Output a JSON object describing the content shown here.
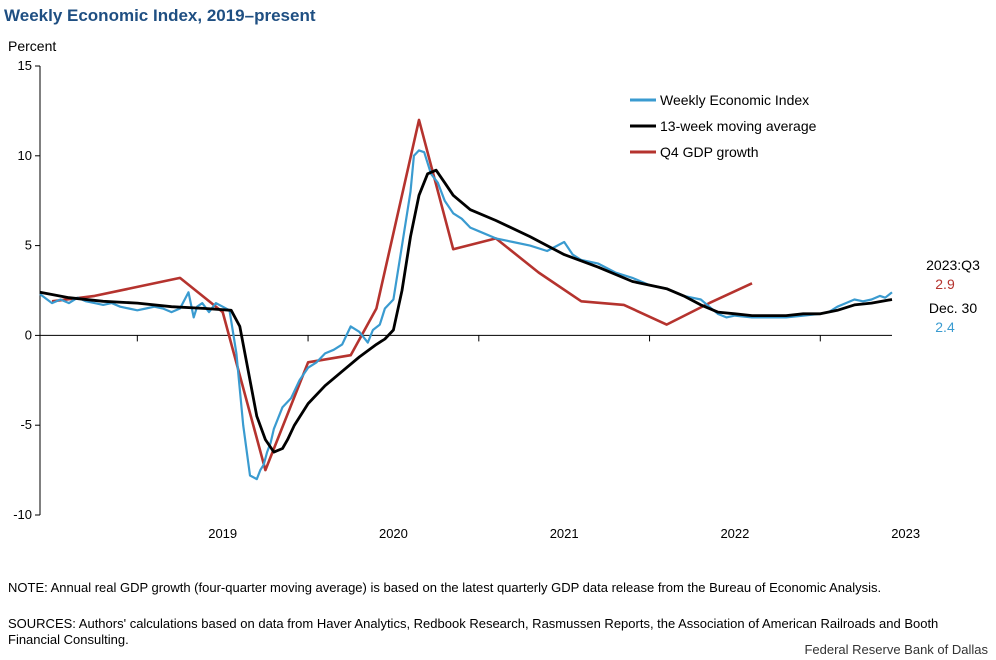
{
  "title": "Weekly Economic Index, 2019–present",
  "note": "NOTE: Annual real GDP growth (four-quarter moving average) is based on the latest quarterly GDP data release from the Bureau of Economic Analysis.",
  "sources": "SOURCES: Authors' calculations based on data from Haver Analytics, Redbook Research, Rasmussen Reports, the Association of American Railroads and Booth Financial Consulting.",
  "credit": "Federal Reserve Bank of Dallas",
  "colors": {
    "wei": "#3a9bd0",
    "ma": "#000000",
    "gdp": "#b5332e",
    "axis": "#000000"
  },
  "chart_data": {
    "type": "line",
    "ylabel": "Percent",
    "ylim": [
      -10,
      15
    ],
    "y_ticks": [
      -10,
      -5,
      0,
      5,
      10,
      15
    ],
    "xlim": [
      2018.43,
      2023.42
    ],
    "x_ticks": [
      "2019",
      "2020",
      "2021",
      "2022",
      "2023"
    ],
    "grid": false,
    "legend": "top-right",
    "series": [
      {
        "name": "Weekly Economic Index",
        "color": "#3a9bd0",
        "x": [
          2018.43,
          2018.5,
          2018.55,
          2018.6,
          2018.65,
          2018.7,
          2018.75,
          2018.8,
          2018.85,
          2018.9,
          2018.95,
          2019.0,
          2019.05,
          2019.1,
          2019.15,
          2019.2,
          2019.25,
          2019.3,
          2019.33,
          2019.35,
          2019.38,
          2019.42,
          2019.46,
          2019.5,
          2019.54,
          2019.58,
          2019.62,
          2019.66,
          2019.7,
          2019.72,
          2019.74,
          2019.76,
          2019.78,
          2019.8,
          2019.85,
          2019.9,
          2019.95,
          2020.0,
          2020.05,
          2020.1,
          2020.15,
          2020.2,
          2020.25,
          2020.3,
          2020.35,
          2020.38,
          2020.42,
          2020.45,
          2020.5,
          2020.55,
          2020.6,
          2020.62,
          2020.65,
          2020.68,
          2020.72,
          2020.76,
          2020.8,
          2020.85,
          2020.9,
          2020.95,
          2021.0,
          2021.1,
          2021.2,
          2021.3,
          2021.4,
          2021.5,
          2021.55,
          2021.6,
          2021.7,
          2021.8,
          2021.9,
          2022.0,
          2022.1,
          2022.2,
          2022.3,
          2022.35,
          2022.4,
          2022.45,
          2022.5,
          2022.6,
          2022.7,
          2022.8,
          2022.9,
          2023.0,
          2023.05,
          2023.1,
          2023.15,
          2023.2,
          2023.25,
          2023.3,
          2023.35,
          2023.38,
          2023.42
        ],
        "values": [
          2.3,
          1.8,
          2.0,
          1.8,
          2.1,
          1.9,
          1.8,
          1.7,
          1.8,
          1.6,
          1.5,
          1.4,
          1.5,
          1.6,
          1.5,
          1.3,
          1.5,
          2.4,
          1.0,
          1.6,
          1.8,
          1.3,
          1.8,
          1.6,
          1.4,
          -1.0,
          -5.0,
          -7.8,
          -8.0,
          -7.5,
          -7.2,
          -6.5,
          -6.0,
          -5.2,
          -4.0,
          -3.5,
          -2.5,
          -1.8,
          -1.5,
          -1.0,
          -0.8,
          -0.5,
          0.5,
          0.2,
          -0.4,
          0.3,
          0.6,
          1.5,
          2.0,
          5.0,
          8.0,
          10.0,
          10.3,
          10.2,
          9.0,
          8.5,
          7.5,
          6.8,
          6.5,
          6.0,
          5.8,
          5.4,
          5.2,
          5.0,
          4.7,
          5.2,
          4.5,
          4.2,
          4.0,
          3.5,
          3.2,
          2.8,
          2.6,
          2.2,
          2.0,
          1.6,
          1.2,
          1.0,
          1.1,
          1.0,
          1.0,
          1.0,
          1.1,
          1.2,
          1.3,
          1.6,
          1.8,
          2.0,
          1.9,
          2.0,
          2.2,
          2.1,
          2.4
        ]
      },
      {
        "name": "13-week moving average",
        "color": "#000000",
        "x": [
          2018.43,
          2018.6,
          2018.8,
          2019.0,
          2019.2,
          2019.4,
          2019.55,
          2019.6,
          2019.65,
          2019.7,
          2019.75,
          2019.8,
          2019.85,
          2019.88,
          2019.92,
          2020.0,
          2020.1,
          2020.2,
          2020.3,
          2020.4,
          2020.45,
          2020.5,
          2020.55,
          2020.6,
          2020.65,
          2020.7,
          2020.75,
          2020.8,
          2020.85,
          2020.95,
          2021.1,
          2021.3,
          2021.5,
          2021.7,
          2021.9,
          2022.1,
          2022.2,
          2022.3,
          2022.4,
          2022.5,
          2022.6,
          2022.8,
          2022.9,
          2023.0,
          2023.1,
          2023.2,
          2023.3,
          2023.42
        ],
        "values": [
          2.4,
          2.1,
          1.9,
          1.8,
          1.6,
          1.5,
          1.4,
          0.5,
          -2.0,
          -4.5,
          -5.8,
          -6.5,
          -6.3,
          -5.8,
          -5.0,
          -3.8,
          -2.8,
          -2.0,
          -1.2,
          -0.5,
          -0.2,
          0.3,
          2.5,
          5.5,
          7.8,
          9.0,
          9.2,
          8.5,
          7.8,
          7.0,
          6.4,
          5.5,
          4.5,
          3.8,
          3.0,
          2.6,
          2.2,
          1.7,
          1.3,
          1.2,
          1.1,
          1.1,
          1.2,
          1.2,
          1.4,
          1.7,
          1.8,
          2.0
        ]
      },
      {
        "name": "Q4 GDP growth",
        "color": "#b5332e",
        "x": [
          2018.5,
          2018.75,
          2019.0,
          2019.25,
          2019.5,
          2019.75,
          2020.0,
          2020.25,
          2020.4,
          2020.65,
          2020.85,
          2021.1,
          2021.35,
          2021.6,
          2021.85,
          2022.1,
          2022.35,
          2022.6
        ],
        "values": [
          1.9,
          2.2,
          2.7,
          3.2,
          1.3,
          -7.5,
          -1.5,
          -1.1,
          1.5,
          12.0,
          4.8,
          5.4,
          3.5,
          1.9,
          1.7,
          0.6,
          1.8,
          2.9
        ]
      }
    ],
    "end_labels": [
      {
        "label": "2023:Q3",
        "value": "2.9",
        "color": "#b5332e"
      },
      {
        "label": "Dec. 30",
        "value": "2.4",
        "color": "#3a9bd0"
      }
    ]
  }
}
